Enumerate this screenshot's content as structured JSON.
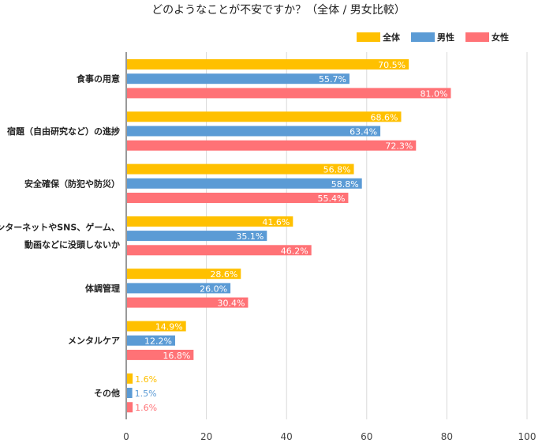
{
  "colors": {
    "all": "#FFC000",
    "male": "#5B9BD5",
    "female": "#FF7276",
    "grid": "#d9d9d9",
    "axis": "#333333"
  },
  "chart_data": {
    "type": "bar",
    "orientation": "horizontal",
    "title": "どのようなことが不安ですか？（全体 / 男女比較）",
    "legend": "top-right",
    "grid": true,
    "xlim": [
      0,
      100
    ],
    "xticks": [
      "0",
      "20",
      "40",
      "60",
      "80",
      "100"
    ],
    "categories": [
      [
        "食事の用意"
      ],
      [
        "宿題（自由研究など）の進捗"
      ],
      [
        "安全確保（防犯や防災）"
      ],
      [
        "インターネットやSNS、ゲーム、",
        "動画などに没頭しないか"
      ],
      [
        "体調管理"
      ],
      [
        "メンタルケア"
      ],
      [
        "その他"
      ]
    ],
    "series": [
      {
        "name": "全体",
        "key": "all",
        "values": [
          70.5,
          68.6,
          56.8,
          41.6,
          28.6,
          14.9,
          1.6
        ],
        "labels": [
          "70.5%",
          "68.6%",
          "56.8%",
          "41.6%",
          "28.6%",
          "14.9%",
          "1.6%"
        ]
      },
      {
        "name": "男性",
        "key": "male",
        "values": [
          55.7,
          63.4,
          58.8,
          35.1,
          26.0,
          12.2,
          1.5
        ],
        "labels": [
          "55.7%",
          "63.4%",
          "58.8%",
          "35.1%",
          "26.0%",
          "12.2%",
          "1.5%"
        ]
      },
      {
        "name": "女性",
        "key": "female",
        "values": [
          81.0,
          72.3,
          55.4,
          46.2,
          30.4,
          16.8,
          1.6
        ],
        "labels": [
          "81.0%",
          "72.3%",
          "55.4%",
          "46.2%",
          "30.4%",
          "16.8%",
          "1.6%"
        ]
      }
    ]
  }
}
